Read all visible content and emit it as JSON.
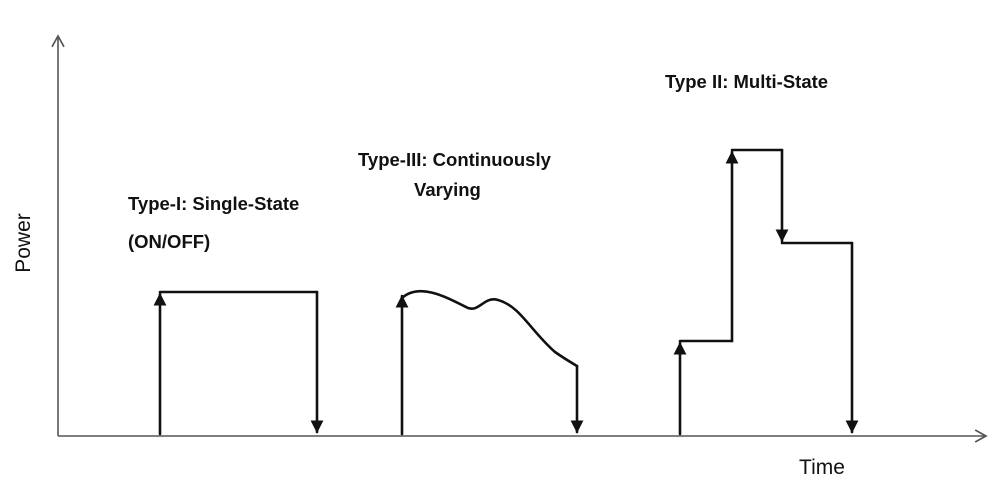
{
  "axes": {
    "x_label": "Time",
    "y_label": "Power"
  },
  "types": [
    {
      "id": "type-i",
      "line1": "Type-I: Single-State",
      "line2": "(ON/OFF)"
    },
    {
      "id": "type-iii",
      "line1": "Type-III: Continuously",
      "line2": "Varying"
    },
    {
      "id": "type-ii",
      "line1": "Type II: Multi-State",
      "line2": ""
    }
  ]
}
